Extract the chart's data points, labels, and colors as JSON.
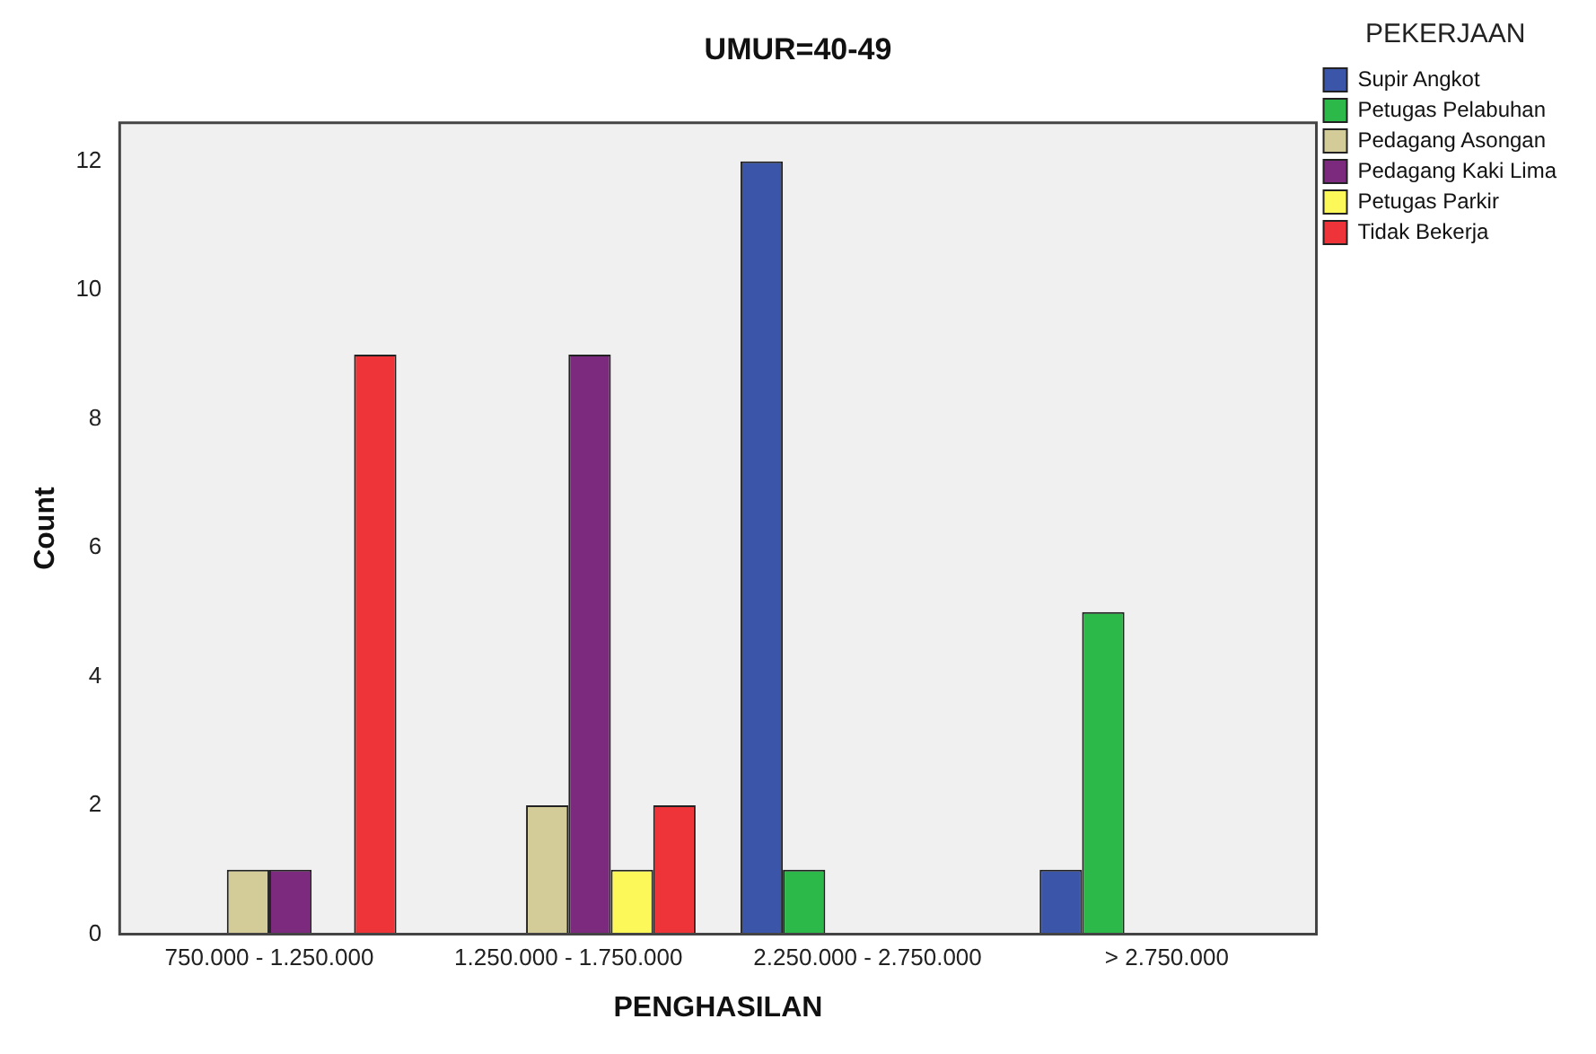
{
  "chart_data": {
    "type": "bar",
    "title": "UMUR=40-49",
    "xlabel": "PENGHASILAN",
    "ylabel": "Count",
    "legend_title": "PEKERJAAN",
    "categories": [
      "750.000 - 1.250.000",
      "1.250.000 - 1.750.000",
      "2.250.000 - 2.750.000",
      "> 2.750.000"
    ],
    "series": [
      {
        "name": "Supir Angkot",
        "color": "#3b56a8",
        "values": [
          null,
          null,
          12,
          1
        ]
      },
      {
        "name": "Petugas Pelabuhan",
        "color": "#2db84a",
        "values": [
          null,
          null,
          1,
          5
        ]
      },
      {
        "name": "Pedagang Asongan",
        "color": "#d4cc98",
        "values": [
          1,
          2,
          null,
          null
        ]
      },
      {
        "name": "Pedagang Kaki Lima",
        "color": "#7c2a7e",
        "values": [
          1,
          9,
          null,
          null
        ]
      },
      {
        "name": "Petugas Parkir",
        "color": "#fcf85a",
        "values": [
          null,
          1,
          null,
          null
        ]
      },
      {
        "name": "Tidak Bekerja",
        "color": "#ee3438",
        "values": [
          9,
          2,
          null,
          null
        ]
      }
    ],
    "ylim": [
      0,
      12.6
    ],
    "yticks": [
      0,
      2,
      4,
      6,
      8,
      10,
      12
    ],
    "grid": false,
    "legend": "top right"
  }
}
